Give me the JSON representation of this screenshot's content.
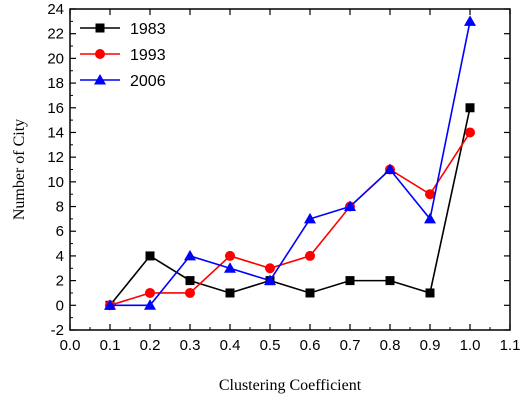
{
  "chart_data": {
    "type": "line",
    "xlabel": "Clustering Coefficient",
    "ylabel": "Number of City",
    "xlim": [
      0.0,
      1.1
    ],
    "ylim": [
      -2,
      24
    ],
    "xticks": [
      "0.0",
      "0.1",
      "0.2",
      "0.3",
      "0.4",
      "0.5",
      "0.6",
      "0.7",
      "0.8",
      "0.9",
      "1.0",
      "1.1"
    ],
    "yticks": [
      "-2",
      "0",
      "2",
      "4",
      "6",
      "8",
      "10",
      "12",
      "14",
      "16",
      "18",
      "20",
      "22",
      "24"
    ],
    "x": [
      0.1,
      0.2,
      0.3,
      0.4,
      0.5,
      0.6,
      0.7,
      0.8,
      0.9,
      1.0
    ],
    "grid": false,
    "legend_position": "top-left",
    "series": [
      {
        "name": "1983",
        "color": "#000000",
        "marker": "square",
        "values": [
          0,
          4,
          2,
          1,
          2,
          1,
          2,
          2,
          1,
          16
        ]
      },
      {
        "name": "1993",
        "color": "#ff0000",
        "marker": "circle",
        "values": [
          0,
          1,
          1,
          4,
          3,
          4,
          8,
          11,
          9,
          14
        ]
      },
      {
        "name": "2006",
        "color": "#0000ff",
        "marker": "triangle",
        "values": [
          0,
          0,
          4,
          3,
          2,
          7,
          8,
          11,
          7,
          23
        ]
      }
    ]
  }
}
